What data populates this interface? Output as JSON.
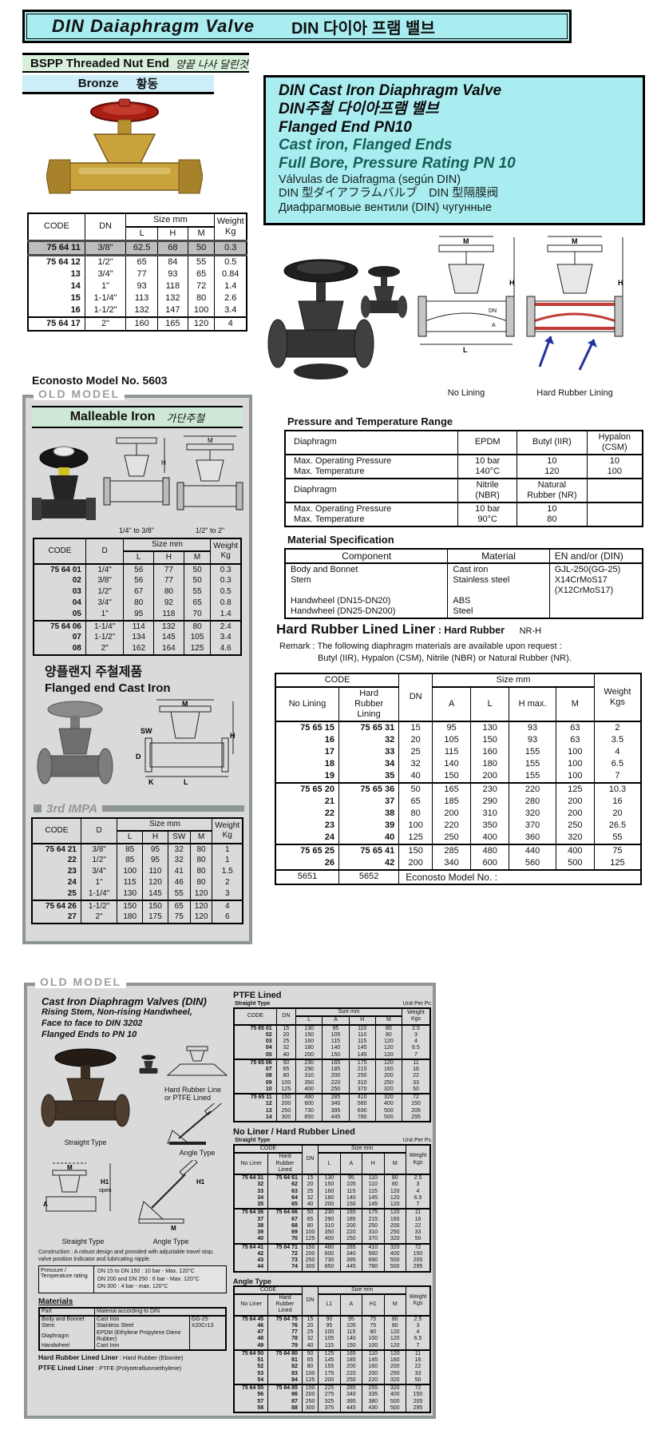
{
  "banner": {
    "title_en": "DIN Daiaphragm Valve",
    "title_ko": "DIN 다이아 프램 밸브"
  },
  "labels": {
    "code": "CODE",
    "dn": "DN",
    "d": "D",
    "size_mm": "Size mm",
    "weight_kg": "Weight\nKg",
    "weight_kgs": "Weight\nKgs",
    "l": "L",
    "h": "H",
    "m": "M",
    "a": "A",
    "sw": "SW",
    "h_max": "H max.",
    "l1": "L1",
    "h1": "H1",
    "no_lining": "No Lining",
    "hard_rubber_lining": "Hard\nRubber\nLining",
    "no_liner": "No Liner",
    "hard_rubber_lined": "Hard\nRubber\nLined"
  },
  "dims": {
    "m": "M",
    "h": "H",
    "l": "L",
    "a": "A",
    "dn": "DN",
    "sw": "SW",
    "d": "D",
    "k": "K",
    "h1": "H1",
    "open": "open"
  },
  "bronze": {
    "header_en": "BSPP Threaded Nut End",
    "header_ko": "양끝 나사 달린것",
    "material_en": "Bronze",
    "material_ko": "황동",
    "groups": [
      [
        [
          "75 64 11",
          "3/8\"",
          "62.5",
          "68",
          "50",
          "0.3"
        ]
      ],
      [
        [
          "75 64 12",
          "1/2\"",
          "65",
          "84",
          "55",
          "0.5"
        ],
        [
          "13",
          "3/4\"",
          "77",
          "93",
          "65",
          "0.84"
        ],
        [
          "14",
          "1\"",
          "93",
          "118",
          "72",
          "1.4"
        ],
        [
          "15",
          "1-1/4\"",
          "113",
          "132",
          "80",
          "2.6"
        ],
        [
          "16",
          "1-1/2\"",
          "132",
          "147",
          "100",
          "3.4"
        ]
      ],
      [
        [
          "75 64 17",
          "2\"",
          "160",
          "165",
          "120",
          "4"
        ]
      ]
    ],
    "model_note": "Econosto Model No. 5603"
  },
  "old1": {
    "label": "OLD MODEL",
    "header_en": "Malleable Iron",
    "header_ko": "가단주철",
    "caption_small": "1/4\" to 3/8\"",
    "caption_large": "1/2\" to 2\"",
    "groups": [
      [
        [
          "75 64 01",
          "1/4\"",
          "56",
          "77",
          "50",
          "0.3"
        ],
        [
          "02",
          "3/8\"",
          "56",
          "77",
          "50",
          "0.3"
        ],
        [
          "03",
          "1/2\"",
          "67",
          "80",
          "55",
          "0.5"
        ],
        [
          "04",
          "3/4\"",
          "80",
          "92",
          "65",
          "0.8"
        ],
        [
          "05",
          "1\"",
          "95",
          "118",
          "70",
          "1.4"
        ]
      ],
      [
        [
          "75 64 06",
          "1-1/4\"",
          "114",
          "132",
          "80",
          "2.4"
        ],
        [
          "07",
          "1-1/2\"",
          "134",
          "145",
          "105",
          "3.4"
        ],
        [
          "08",
          "2\"",
          "162",
          "164",
          "125",
          "4.6"
        ]
      ]
    ],
    "flanged_ko": "양플랜지 주철제품",
    "flanged_en": "Flanged end Cast Iron",
    "impa_label": "3rd IMPA",
    "impa_groups": [
      [
        [
          "75 64 21",
          "3/8\"",
          "85",
          "95",
          "32",
          "80",
          "1"
        ],
        [
          "22",
          "1/2\"",
          "85",
          "95",
          "32",
          "80",
          "1"
        ],
        [
          "23",
          "3/4\"",
          "100",
          "110",
          "41",
          "80",
          "1.5"
        ],
        [
          "24",
          "1\"",
          "115",
          "120",
          "46",
          "80",
          "2"
        ],
        [
          "25",
          "1-1/4\"",
          "130",
          "145",
          "55",
          "120",
          "3"
        ]
      ],
      [
        [
          "75 64 26",
          "1-1/2\"",
          "150",
          "150",
          "65",
          "120",
          "4"
        ],
        [
          "27",
          "2\"",
          "180",
          "175",
          "75",
          "120",
          "6"
        ]
      ]
    ]
  },
  "infobox": {
    "line1": "DIN Cast Iron Diaphragm Valve",
    "line2": "DIN주철 다이아프램 밸브",
    "line3": "Flanged End PN10",
    "line4": "Cast iron, Flanged Ends",
    "line5": "Full Bore, Pressure Rating PN 10",
    "line6": "Válvulas de Diafragma (según DIN)",
    "line7": "DIN 型ダイアフラムバルブ　DIN 型隔膜阀",
    "line8": "Диафрагмовые вентили (DIN) чугунные"
  },
  "diagram_captions": {
    "no_lining": "No Lining",
    "hard_rubber_lining": "Hard Rubber Lining"
  },
  "pt": {
    "title": "Pressure and Temperature Range",
    "rows": [
      {
        "lab": "Diaphragm",
        "c1": "EPDM",
        "c2": "Butyl (IIR)",
        "c3": "Hypalon\n(CSM)"
      },
      {
        "lab": "Max. Operating Pressure\nMax. Temperature",
        "c1": "10 bar\n140°C",
        "c2": "10\n120",
        "c3": "10\n100"
      },
      {
        "lab": "Diaphragm",
        "c1": "Nitrile\n(NBR)",
        "c2": "Natural\nRubber (NR)",
        "c3": ""
      },
      {
        "lab": "Max. Operating Pressure\nMax. Temperature",
        "c1": "10 bar\n90°C",
        "c2": "10\n80",
        "c3": ""
      }
    ]
  },
  "mat": {
    "title": "Material Specification",
    "h1": "Component",
    "h2": "Material",
    "h3": "EN and/or (DIN)",
    "c1": "Body and Bonnet\nStem\n\nHandwheel (DN15-DN20)\nHandwheel (DN25-DN200)",
    "c2": "Cast iron\nStainless steel\n\nABS\nSteel",
    "c3": "GJL-250(GG-25)\nX14CrMoS17\n(X12CrMoS17)"
  },
  "hrl": {
    "title": "Hard Rubber Lined Liner",
    "rest": " : Hard Rubber",
    "grade": "NR-H"
  },
  "remark": {
    "line1": "Remark : The following diaphragm materials are available upon request :",
    "line2": "Butyl (IIR), Hypalon (CSM), Nitrile (NBR) or Natural Rubber (NR)."
  },
  "main_table": {
    "groups": [
      [
        [
          "75 65 15",
          "75 65 31",
          "15",
          "95",
          "130",
          "93",
          "63",
          "2"
        ],
        [
          "16",
          "32",
          "20",
          "105",
          "150",
          "93",
          "63",
          "3.5"
        ],
        [
          "17",
          "33",
          "25",
          "115",
          "160",
          "155",
          "100",
          "4"
        ],
        [
          "18",
          "34",
          "32",
          "140",
          "180",
          "155",
          "100",
          "6.5"
        ],
        [
          "19",
          "35",
          "40",
          "150",
          "200",
          "155",
          "100",
          "7"
        ]
      ],
      [
        [
          "75 65 20",
          "75 65 36",
          "50",
          "165",
          "230",
          "220",
          "125",
          "10.3"
        ],
        [
          "21",
          "37",
          "65",
          "185",
          "290",
          "280",
          "200",
          "16"
        ],
        [
          "22",
          "38",
          "80",
          "200",
          "310",
          "320",
          "200",
          "20"
        ],
        [
          "23",
          "39",
          "100",
          "220",
          "350",
          "370",
          "250",
          "26.5"
        ],
        [
          "24",
          "40",
          "125",
          "250",
          "400",
          "360",
          "320",
          "55"
        ]
      ],
      [
        [
          "75 65 25",
          "75 65 41",
          "150",
          "285",
          "480",
          "440",
          "400",
          "75"
        ],
        [
          "26",
          "42",
          "200",
          "340",
          "600",
          "560",
          "500",
          "125"
        ]
      ]
    ],
    "footer": {
      "c1": "5651",
      "c2": "5652",
      "c3": "Econosto Model No. :"
    }
  },
  "old2": {
    "label": "OLD MODEL",
    "title": "Cast Iron Diaphragm Valves (DIN)",
    "sub1": "Rising Stem, Non-rising Handwheel,",
    "sub2": "Face to face to DIN 3202",
    "sub3": "Flanged Ends to PN 10",
    "cap_straight": "Straight Type",
    "cap_angle": "Angle Type",
    "cap_lined": "Hard Rubber Line\nor PTFE Lined",
    "construction": "Construction : A robust design and provided with adjustable travel stop, valve position indicator and lubricating nipple.",
    "pt_label": "Pressure / Temperature rating",
    "pt_lines": "DN 15 to DN 150 : 10 bar - Max. 120°C\nDN 200 and DN 250 : 6 bar - Max. 120°C\nDN 300 : 4 bar - max. 120°C",
    "materials": {
      "title": "Materials",
      "h1": "Part",
      "h2": "Material according to DIN",
      "rows": [
        [
          "Body and Bonnet",
          "Cast Iron",
          "GG-25"
        ],
        [
          "Stem",
          "Stainless Steel",
          "X20Cr13"
        ],
        [
          "Diaphragm",
          "EPDM (Ethylene Propylene Diene Rubber)",
          ""
        ],
        [
          "Handwheel",
          "Cast Iron",
          ""
        ]
      ]
    },
    "liner1_label": "Hard Rubber Lined Liner",
    "liner1_rest": " : Hard Rubber (Ebonite)",
    "liner2_label": "PTFE Lined Liner",
    "liner2_rest": " : PTFE (Polytetrafluoroethylene)",
    "ptfe": {
      "title": "PTFE Lined",
      "subtitle": "Straight Type",
      "unit": "Unit Per Pc.",
      "groups": [
        [
          [
            "75 65 01",
            "15",
            "130",
            "95",
            "110",
            "80",
            "2.5"
          ],
          [
            "02",
            "20",
            "150",
            "105",
            "110",
            "80",
            "3"
          ],
          [
            "03",
            "25",
            "160",
            "115",
            "115",
            "120",
            "4"
          ],
          [
            "04",
            "32",
            "180",
            "140",
            "145",
            "120",
            "6.5"
          ],
          [
            "05",
            "40",
            "200",
            "150",
            "145",
            "120",
            "7"
          ]
        ],
        [
          [
            "75 65 06",
            "50",
            "230",
            "165",
            "175",
            "120",
            "11"
          ],
          [
            "07",
            "65",
            "290",
            "185",
            "215",
            "160",
            "16"
          ],
          [
            "08",
            "80",
            "310",
            "200",
            "250",
            "200",
            "22"
          ],
          [
            "09",
            "100",
            "350",
            "220",
            "310",
            "250",
            "33"
          ],
          [
            "10",
            "125",
            "400",
            "250",
            "370",
            "320",
            "50"
          ]
        ],
        [
          [
            "75 65 11",
            "150",
            "480",
            "285",
            "410",
            "320",
            "72"
          ],
          [
            "12",
            "200",
            "600",
            "340",
            "560",
            "400",
            "150"
          ],
          [
            "13",
            "250",
            "730",
            "395",
            "690",
            "500",
            "205"
          ],
          [
            "14",
            "300",
            "850",
            "445",
            "780",
            "500",
            "295"
          ]
        ]
      ]
    },
    "nl": {
      "title": "No Liner / Hard Rubber Lined",
      "subtitle": "Straight Type",
      "unit": "Unit Per Pc.",
      "groups": [
        [
          [
            "75 64 31",
            "75 64 61",
            "15",
            "130",
            "95",
            "110",
            "80",
            "2.5"
          ],
          [
            "32",
            "62",
            "20",
            "150",
            "105",
            "110",
            "80",
            "3"
          ],
          [
            "33",
            "63",
            "25",
            "160",
            "115",
            "115",
            "120",
            "4"
          ],
          [
            "34",
            "64",
            "32",
            "180",
            "140",
            "145",
            "120",
            "6.5"
          ],
          [
            "35",
            "65",
            "40",
            "200",
            "150",
            "145",
            "120",
            "7"
          ]
        ],
        [
          [
            "75 64 36",
            "75 64 66",
            "50",
            "230",
            "165",
            "175",
            "120",
            "11"
          ],
          [
            "37",
            "67",
            "65",
            "290",
            "185",
            "215",
            "160",
            "16"
          ],
          [
            "38",
            "68",
            "80",
            "310",
            "200",
            "250",
            "200",
            "22"
          ],
          [
            "39",
            "69",
            "100",
            "350",
            "220",
            "310",
            "250",
            "33"
          ],
          [
            "40",
            "70",
            "125",
            "400",
            "250",
            "370",
            "320",
            "50"
          ]
        ],
        [
          [
            "75 64 41",
            "75 64 71",
            "150",
            "480",
            "285",
            "410",
            "320",
            "72"
          ],
          [
            "42",
            "72",
            "200",
            "600",
            "340",
            "560",
            "400",
            "150"
          ],
          [
            "43",
            "73",
            "250",
            "730",
            "395",
            "690",
            "500",
            "205"
          ],
          [
            "44",
            "74",
            "300",
            "850",
            "445",
            "780",
            "500",
            "295"
          ]
        ]
      ]
    },
    "angle": {
      "title": "Angle Type",
      "groups": [
        [
          [
            "75 64 45",
            "75 64 75",
            "15",
            "90",
            "95",
            "75",
            "80",
            "2.5"
          ],
          [
            "46",
            "76",
            "20",
            "95",
            "105",
            "75",
            "80",
            "3"
          ],
          [
            "47",
            "77",
            "25",
            "100",
            "115",
            "80",
            "120",
            "4"
          ],
          [
            "48",
            "78",
            "32",
            "105",
            "140",
            "100",
            "120",
            "6.5"
          ],
          [
            "49",
            "79",
            "40",
            "115",
            "150",
            "100",
            "120",
            "7"
          ]
        ],
        [
          [
            "75 64 50",
            "75 64 80",
            "50",
            "125",
            "165",
            "110",
            "120",
            "11"
          ],
          [
            "51",
            "81",
            "65",
            "145",
            "185",
            "145",
            "160",
            "16"
          ],
          [
            "52",
            "82",
            "80",
            "155",
            "200",
            "160",
            "200",
            "22"
          ],
          [
            "53",
            "83",
            "100",
            "175",
            "220",
            "200",
            "250",
            "33"
          ],
          [
            "54",
            "84",
            "125",
            "200",
            "250",
            "220",
            "320",
            "50"
          ]
        ],
        [
          [
            "75 64 55",
            "75 64 85",
            "150",
            "225",
            "285",
            "255",
            "320",
            "72"
          ],
          [
            "56",
            "86",
            "200",
            "275",
            "340",
            "335",
            "400",
            "150"
          ],
          [
            "57",
            "87",
            "250",
            "325",
            "395",
            "380",
            "500",
            "205"
          ],
          [
            "58",
            "88",
            "300",
            "375",
            "445",
            "430",
            "500",
            "295"
          ]
        ]
      ]
    }
  }
}
